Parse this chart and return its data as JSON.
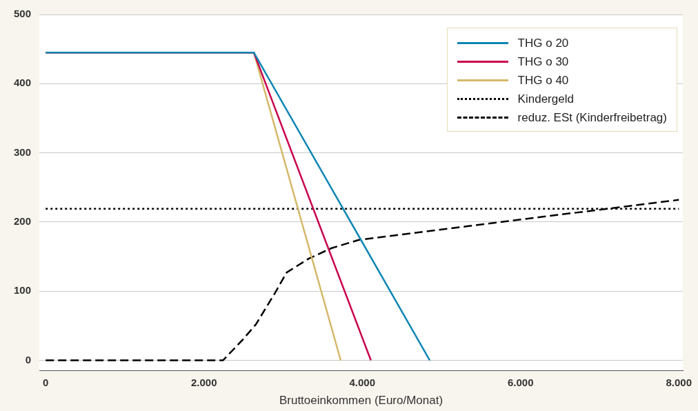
{
  "chart_data": {
    "type": "line",
    "xlabel": "Bruttoeinkommen (Euro/Monat)",
    "xlim": [
      -80,
      8050
    ],
    "ylim": [
      -15,
      500
    ],
    "xticks": [
      {
        "value": 0,
        "label": "0"
      },
      {
        "value": 2000,
        "label": "2.000"
      },
      {
        "value": 4000,
        "label": "4.000"
      },
      {
        "value": 6000,
        "label": "6.000"
      },
      {
        "value": 8000,
        "label": "8.000"
      }
    ],
    "yticks": [
      0,
      100,
      200,
      300,
      400,
      500
    ],
    "grid": "y",
    "legend": "top right",
    "marker": "none",
    "series": [
      {
        "name": "THG o 20",
        "color": "#0f86b4",
        "line_style": "solid",
        "x": [
          0,
          2630,
          4853
        ],
        "values": [
          445,
          445,
          0
        ]
      },
      {
        "name": "THG o 30",
        "color": "#c8004b",
        "line_style": "solid",
        "x": [
          0,
          2630,
          4109
        ],
        "values": [
          445,
          445,
          0
        ]
      },
      {
        "name": "THG o 40",
        "color": "#d4b86a",
        "line_style": "solid",
        "x": [
          0,
          2630,
          3728
        ],
        "values": [
          445,
          445,
          0
        ]
      },
      {
        "name": "Kindergeld",
        "color": "#000000",
        "line_style": "dotted",
        "x": [
          0,
          8000
        ],
        "values": [
          219,
          219
        ]
      },
      {
        "name": "reduz. ESt (Kinderfreibetrag)",
        "color": "#000000",
        "line_style": "dashed",
        "x": [
          0,
          2240,
          2483,
          2656,
          2890,
          3045,
          3322,
          3607,
          3953,
          6030,
          8000
        ],
        "values": [
          0,
          0,
          29,
          52,
          96,
          127,
          147,
          162,
          174,
          204,
          232
        ]
      }
    ]
  }
}
